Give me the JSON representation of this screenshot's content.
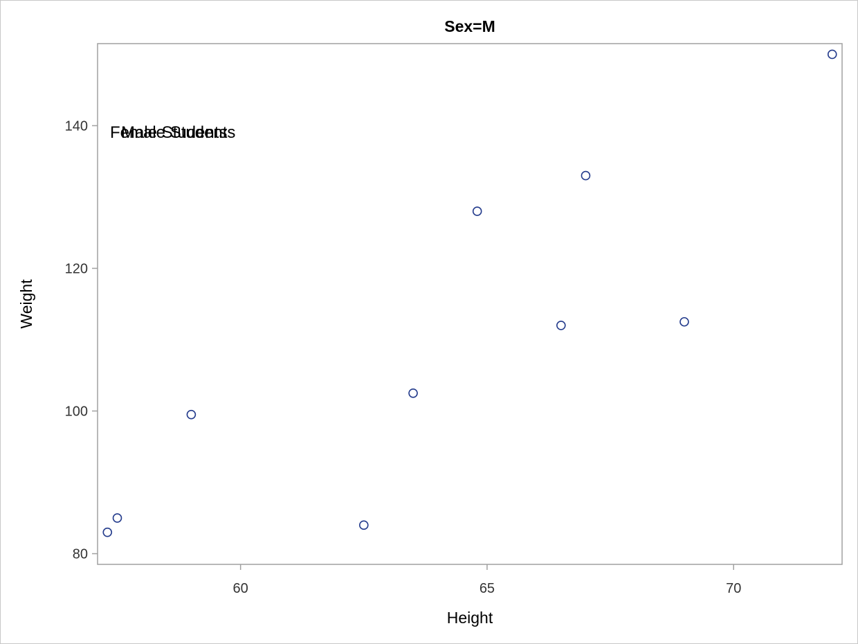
{
  "chart_data": {
    "type": "scatter",
    "title": "Sex=M",
    "xlabel": "Height",
    "ylabel": "Weight",
    "xlim": [
      57.1,
      72.2
    ],
    "ylim": [
      78.5,
      151.5
    ],
    "xticks": [
      60,
      65,
      70
    ],
    "yticks": [
      80,
      100,
      120,
      140
    ],
    "grid": false,
    "marker": "open-circle",
    "marker_color": "#233b8c",
    "annotations": [
      "Female Students",
      "Male Students"
    ],
    "series": [
      {
        "points": [
          {
            "x": 57.3,
            "y": 83.0
          },
          {
            "x": 57.5,
            "y": 85.0
          },
          {
            "x": 59.0,
            "y": 99.5
          },
          {
            "x": 62.5,
            "y": 84.0
          },
          {
            "x": 63.5,
            "y": 102.5
          },
          {
            "x": 64.8,
            "y": 128.0
          },
          {
            "x": 66.5,
            "y": 112.0
          },
          {
            "x": 67.0,
            "y": 133.0
          },
          {
            "x": 69.0,
            "y": 112.5
          },
          {
            "x": 72.0,
            "y": 150.0
          }
        ]
      }
    ]
  }
}
